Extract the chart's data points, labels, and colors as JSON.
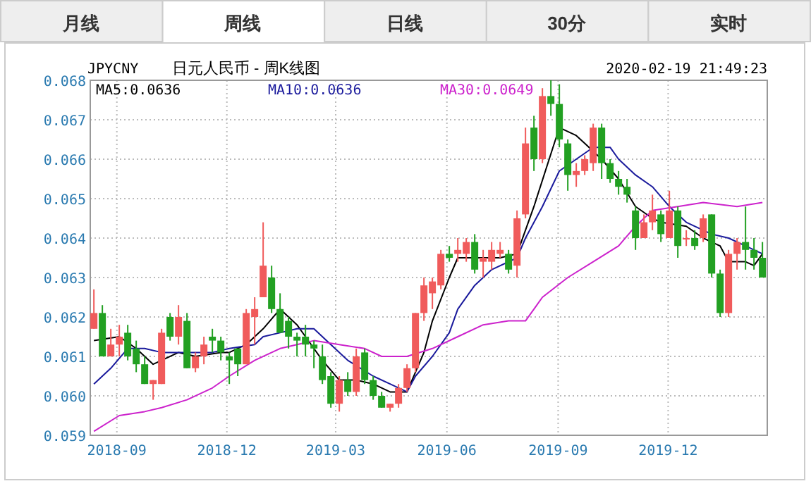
{
  "chart_data": {
    "type": "candlestick",
    "title": "日元人民币 - 周K线图",
    "subtitle": "JPYCNY",
    "annotations": [
      "月线",
      "周线",
      "日线",
      "30分",
      "实时",
      "2020-02-19 21:49:23"
    ],
    "x": [
      "2018-08-13",
      "2018-08-20",
      "2018-08-27",
      "2018-09-03",
      "2018-09-10",
      "2018-09-17",
      "2018-09-24",
      "2018-10-01",
      "2018-10-08",
      "2018-10-15",
      "2018-10-22",
      "2018-10-29",
      "2018-11-05",
      "2018-11-12",
      "2018-11-19",
      "2018-11-26",
      "2018-12-03",
      "2018-12-10",
      "2018-12-17",
      "2018-12-24",
      "2018-12-31",
      "2019-01-07",
      "2019-01-14",
      "2019-01-21",
      "2019-01-28",
      "2019-02-04",
      "2019-02-11",
      "2019-02-18",
      "2019-02-25",
      "2019-03-04",
      "2019-03-11",
      "2019-03-18",
      "2019-03-25",
      "2019-04-01",
      "2019-04-08",
      "2019-04-15",
      "2019-04-22",
      "2019-04-29",
      "2019-05-06",
      "2019-05-13",
      "2019-05-20",
      "2019-05-27",
      "2019-06-03",
      "2019-06-10",
      "2019-06-17",
      "2019-06-24",
      "2019-07-01",
      "2019-07-08",
      "2019-07-15",
      "2019-07-22",
      "2019-07-29",
      "2019-08-05",
      "2019-08-12",
      "2019-08-19",
      "2019-08-26",
      "2019-09-02",
      "2019-09-09",
      "2019-09-16",
      "2019-09-23",
      "2019-09-30",
      "2019-10-07",
      "2019-10-14",
      "2019-10-21",
      "2019-10-28",
      "2019-11-04",
      "2019-11-11",
      "2019-11-18",
      "2019-11-25",
      "2019-12-02",
      "2019-12-09",
      "2019-12-16",
      "2019-12-23",
      "2019-12-30",
      "2020-01-06",
      "2020-01-13",
      "2020-01-20",
      "2020-01-27",
      "2020-02-03",
      "2020-02-10",
      "2020-02-17"
    ],
    "ohlc": [
      [
        0.0617,
        0.0627,
        0.0617,
        0.0621
      ],
      [
        0.0621,
        0.0623,
        0.061,
        0.061
      ],
      [
        0.061,
        0.0617,
        0.061,
        0.0613
      ],
      [
        0.0613,
        0.0618,
        0.061,
        0.0615
      ],
      [
        0.0616,
        0.0618,
        0.0609,
        0.061
      ],
      [
        0.0612,
        0.0614,
        0.0606,
        0.0608
      ],
      [
        0.0608,
        0.061,
        0.0603,
        0.0603
      ],
      [
        0.0603,
        0.0604,
        0.0599,
        0.0604
      ],
      [
        0.0603,
        0.0617,
        0.0603,
        0.0616
      ],
      [
        0.062,
        0.0621,
        0.0614,
        0.0615
      ],
      [
        0.0615,
        0.0623,
        0.0613,
        0.062
      ],
      [
        0.0619,
        0.0621,
        0.0607,
        0.0607
      ],
      [
        0.0607,
        0.0611,
        0.0606,
        0.061
      ],
      [
        0.061,
        0.0615,
        0.0608,
        0.0613
      ],
      [
        0.0615,
        0.0617,
        0.0611,
        0.0614
      ],
      [
        0.0614,
        0.0615,
        0.0609,
        0.0611
      ],
      [
        0.061,
        0.0611,
        0.0603,
        0.0609
      ],
      [
        0.0612,
        0.0612,
        0.0605,
        0.0608
      ],
      [
        0.0608,
        0.0622,
        0.0608,
        0.0621
      ],
      [
        0.062,
        0.0625,
        0.0613,
        0.0622
      ],
      [
        0.0625,
        0.0644,
        0.0625,
        0.0633
      ],
      [
        0.063,
        0.0633,
        0.0621,
        0.0622
      ],
      [
        0.0622,
        0.0626,
        0.0616,
        0.0616
      ],
      [
        0.0619,
        0.062,
        0.0612,
        0.0615
      ],
      [
        0.0615,
        0.0616,
        0.061,
        0.0614
      ],
      [
        0.0615,
        0.0618,
        0.061,
        0.0613
      ],
      [
        0.0613,
        0.0614,
        0.0607,
        0.0612
      ],
      [
        0.061,
        0.0613,
        0.0603,
        0.0604
      ],
      [
        0.0605,
        0.0606,
        0.0597,
        0.0598
      ],
      [
        0.0598,
        0.0605,
        0.0596,
        0.0604
      ],
      [
        0.0604,
        0.0606,
        0.06,
        0.0601
      ],
      [
        0.0601,
        0.0612,
        0.06,
        0.061
      ],
      [
        0.0611,
        0.0612,
        0.0603,
        0.0604
      ],
      [
        0.0604,
        0.0605,
        0.0599,
        0.06
      ],
      [
        0.06,
        0.0601,
        0.0597,
        0.0597
      ],
      [
        0.0597,
        0.0598,
        0.0596,
        0.0598
      ],
      [
        0.0598,
        0.0603,
        0.0597,
        0.0602
      ],
      [
        0.0602,
        0.0608,
        0.0601,
        0.0607
      ],
      [
        0.0607,
        0.0621,
        0.0606,
        0.0621
      ],
      [
        0.0621,
        0.063,
        0.0619,
        0.0628
      ],
      [
        0.0626,
        0.063,
        0.0622,
        0.0629
      ],
      [
        0.0628,
        0.0637,
        0.0627,
        0.0636
      ],
      [
        0.0636,
        0.0638,
        0.0634,
        0.0635
      ],
      [
        0.0636,
        0.064,
        0.0634,
        0.0637
      ],
      [
        0.0636,
        0.064,
        0.0634,
        0.0639
      ],
      [
        0.0639,
        0.0641,
        0.0631,
        0.0632
      ],
      [
        0.0634,
        0.0637,
        0.063,
        0.0635
      ],
      [
        0.0634,
        0.0639,
        0.0632,
        0.0637
      ],
      [
        0.0636,
        0.0639,
        0.0635,
        0.0637
      ],
      [
        0.0636,
        0.0637,
        0.0631,
        0.0632
      ],
      [
        0.0633,
        0.0647,
        0.063,
        0.0645
      ],
      [
        0.0646,
        0.0668,
        0.0645,
        0.0664
      ],
      [
        0.0668,
        0.0671,
        0.0657,
        0.066
      ],
      [
        0.066,
        0.0678,
        0.0659,
        0.0676
      ],
      [
        0.0676,
        0.068,
        0.0671,
        0.0674
      ],
      [
        0.0674,
        0.0679,
        0.0663,
        0.0665
      ],
      [
        0.0664,
        0.0665,
        0.0652,
        0.0656
      ],
      [
        0.0656,
        0.0659,
        0.0653,
        0.0657
      ],
      [
        0.0657,
        0.0661,
        0.0656,
        0.066
      ],
      [
        0.0659,
        0.0669,
        0.0657,
        0.0668
      ],
      [
        0.0668,
        0.0669,
        0.0655,
        0.0659
      ],
      [
        0.0659,
        0.066,
        0.0654,
        0.0655
      ],
      [
        0.0655,
        0.0657,
        0.0651,
        0.0653
      ],
      [
        0.0653,
        0.0655,
        0.0649,
        0.0651
      ],
      [
        0.0647,
        0.0648,
        0.0637,
        0.064
      ],
      [
        0.064,
        0.0646,
        0.064,
        0.0644
      ],
      [
        0.0644,
        0.0651,
        0.0642,
        0.0647
      ],
      [
        0.0646,
        0.0647,
        0.0639,
        0.0641
      ],
      [
        0.064,
        0.0652,
        0.064,
        0.0647
      ],
      [
        0.0647,
        0.0648,
        0.0635,
        0.0638
      ],
      [
        0.064,
        0.0642,
        0.0638,
        0.064
      ],
      [
        0.064,
        0.0642,
        0.0637,
        0.0638
      ],
      [
        0.064,
        0.0646,
        0.0639,
        0.0645
      ],
      [
        0.0646,
        0.0646,
        0.063,
        0.0631
      ],
      [
        0.0631,
        0.0632,
        0.062,
        0.0621
      ],
      [
        0.0621,
        0.0637,
        0.062,
        0.0636
      ],
      [
        0.0636,
        0.064,
        0.0632,
        0.0639
      ],
      [
        0.0639,
        0.0648,
        0.0632,
        0.0637
      ],
      [
        0.0637,
        0.064,
        0.0632,
        0.0635
      ],
      [
        0.0635,
        0.0639,
        0.063,
        0.063
      ]
    ],
    "colors": [
      "#f05b5b",
      "#22a022",
      "#f05b5b",
      "#f05b5b",
      "#22a022",
      "#22a022",
      "#22a022",
      "#f05b5b",
      "#f05b5b",
      "#22a022",
      "#f05b5b",
      "#22a022",
      "#f05b5b",
      "#f05b5b",
      "#22a022",
      "#22a022",
      "#22a022",
      "#22a022",
      "#f05b5b",
      "#f05b5b",
      "#f05b5b",
      "#22a022",
      "#22a022",
      "#22a022",
      "#22a022",
      "#22a022",
      "#22a022",
      "#22a022",
      "#22a022",
      "#f05b5b",
      "#22a022",
      "#f05b5b",
      "#22a022",
      "#22a022",
      "#22a022",
      "#f05b5b",
      "#f05b5b",
      "#f05b5b",
      "#f05b5b",
      "#f05b5b",
      "#f05b5b",
      "#f05b5b",
      "#22a022",
      "#f05b5b",
      "#f05b5b",
      "#22a022",
      "#f05b5b",
      "#f05b5b",
      "#f05b5b",
      "#22a022",
      "#f05b5b",
      "#f05b5b",
      "#22a022",
      "#f05b5b",
      "#22a022",
      "#22a022",
      "#22a022",
      "#f05b5b",
      "#f05b5b",
      "#f05b5b",
      "#22a022",
      "#22a022",
      "#22a022",
      "#22a022",
      "#22a022",
      "#f05b5b",
      "#f05b5b",
      "#22a022",
      "#f05b5b",
      "#22a022",
      "#f05b5b",
      "#22a022",
      "#f05b5b",
      "#22a022",
      "#22a022",
      "#f05b5b",
      "#f05b5b",
      "#22a022",
      "#22a022",
      "#22a022"
    ],
    "series": [
      {
        "name": "MA5:0.0636",
        "type": "line",
        "color": "#000000",
        "x": [
          "2018-08-13",
          "2018-09-03",
          "2018-09-17",
          "2018-10-01",
          "2018-10-08",
          "2018-10-22",
          "2018-11-05",
          "2018-11-26",
          "2018-12-03",
          "2018-12-17",
          "2018-12-31",
          "2019-01-14",
          "2019-01-28",
          "2019-02-04",
          "2019-02-18",
          "2019-03-04",
          "2019-03-18",
          "2019-04-01",
          "2019-04-15",
          "2019-04-29",
          "2019-05-06",
          "2019-05-13",
          "2019-05-20",
          "2019-06-03",
          "2019-06-10",
          "2019-07-01",
          "2019-07-15",
          "2019-07-29",
          "2019-08-12",
          "2019-09-02",
          "2019-09-16",
          "2019-09-23",
          "2019-10-07",
          "2019-10-21",
          "2019-11-04",
          "2019-11-18",
          "2019-11-25",
          "2019-12-16",
          "2019-12-30",
          "2020-01-13",
          "2020-01-20",
          "2020-02-03",
          "2020-02-10",
          "2020-02-17"
        ],
        "values": [
          0.0614,
          0.0615,
          0.0612,
          0.0608,
          0.0609,
          0.0611,
          0.061,
          0.0611,
          0.0611,
          0.0613,
          0.0617,
          0.0622,
          0.0618,
          0.0615,
          0.0609,
          0.0604,
          0.0604,
          0.0603,
          0.0601,
          0.0601,
          0.0606,
          0.0611,
          0.0619,
          0.063,
          0.0635,
          0.0635,
          0.0635,
          0.0636,
          0.0648,
          0.0668,
          0.0666,
          0.0664,
          0.066,
          0.0655,
          0.0648,
          0.0645,
          0.0644,
          0.0643,
          0.064,
          0.0638,
          0.0634,
          0.0634,
          0.0633,
          0.0636
        ]
      },
      {
        "name": "MA10:0.0636",
        "type": "line",
        "color": "#1a1a9c",
        "x": [
          "2018-08-13",
          "2018-08-27",
          "2018-09-10",
          "2018-09-24",
          "2018-10-08",
          "2018-10-29",
          "2018-11-19",
          "2018-12-03",
          "2018-12-24",
          "2018-12-31",
          "2019-01-14",
          "2019-01-28",
          "2019-02-11",
          "2019-02-25",
          "2019-03-11",
          "2019-04-01",
          "2019-04-15",
          "2019-04-29",
          "2019-05-06",
          "2019-05-20",
          "2019-06-03",
          "2019-06-10",
          "2019-06-24",
          "2019-07-08",
          "2019-07-29",
          "2019-08-05",
          "2019-08-19",
          "2019-09-02",
          "2019-09-16",
          "2019-09-30",
          "2019-10-14",
          "2019-10-21",
          "2019-11-04",
          "2019-11-18",
          "2019-12-02",
          "2019-12-16",
          "2019-12-30",
          "2020-01-06",
          "2020-01-20",
          "2020-02-03",
          "2020-02-17"
        ],
        "values": [
          0.0603,
          0.0607,
          0.0612,
          0.0612,
          0.0611,
          0.0611,
          0.0611,
          0.0612,
          0.0613,
          0.0615,
          0.0616,
          0.0617,
          0.0617,
          0.0613,
          0.0609,
          0.0605,
          0.0603,
          0.0601,
          0.0605,
          0.061,
          0.0616,
          0.0622,
          0.0628,
          0.0632,
          0.0635,
          0.064,
          0.0648,
          0.0657,
          0.066,
          0.0663,
          0.0663,
          0.066,
          0.0656,
          0.0653,
          0.0648,
          0.0644,
          0.0642,
          0.0641,
          0.064,
          0.0638,
          0.0636
        ]
      },
      {
        "name": "MA30:0.0649",
        "type": "line",
        "color": "#cc22cc",
        "x": [
          "2018-08-13",
          "2018-09-03",
          "2018-09-24",
          "2018-10-08",
          "2018-10-29",
          "2018-11-19",
          "2018-12-03",
          "2018-12-24",
          "2019-01-14",
          "2019-01-28",
          "2019-02-11",
          "2019-03-04",
          "2019-03-25",
          "2019-04-08",
          "2019-04-29",
          "2019-05-20",
          "2019-06-10",
          "2019-07-01",
          "2019-07-22",
          "2019-08-05",
          "2019-08-12",
          "2019-08-19",
          "2019-09-09",
          "2019-09-30",
          "2019-10-21",
          "2019-11-04",
          "2019-11-18",
          "2019-12-09",
          "2019-12-30",
          "2020-01-27",
          "2020-02-17"
        ],
        "values": [
          0.0591,
          0.0595,
          0.0596,
          0.0597,
          0.0599,
          0.0602,
          0.0605,
          0.0609,
          0.0612,
          0.0613,
          0.0614,
          0.0613,
          0.0612,
          0.061,
          0.061,
          0.0612,
          0.0615,
          0.0618,
          0.0619,
          0.0619,
          0.0622,
          0.0625,
          0.063,
          0.0634,
          0.0638,
          0.0643,
          0.0647,
          0.0648,
          0.0649,
          0.0648,
          0.0649
        ]
      }
    ],
    "xlim": [
      "2018-08-10",
      "2020-02-21"
    ],
    "xticks": [
      "2018-09",
      "2018-12",
      "2019-03",
      "2019-06",
      "2019-09",
      "2019-12"
    ],
    "ylim": [
      0.059,
      0.068
    ],
    "yticks": [
      0.059,
      {
        "value": 0.06,
        "label": "0.060"
      },
      0.061,
      0.062,
      0.063,
      0.064,
      0.065,
      0.066,
      0.067,
      0.068
    ],
    "grid": true,
    "legend": "top"
  }
}
